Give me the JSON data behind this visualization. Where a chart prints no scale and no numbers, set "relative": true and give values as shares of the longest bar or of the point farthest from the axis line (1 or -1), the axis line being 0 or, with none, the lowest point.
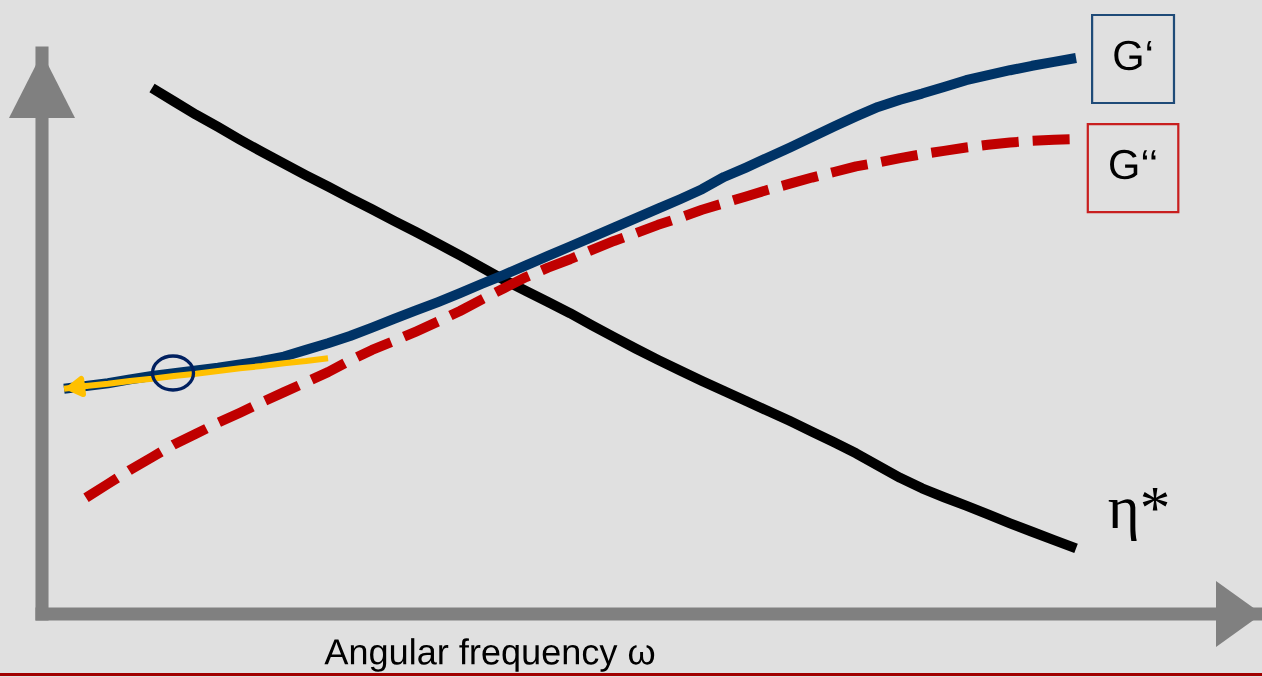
{
  "chart_data": {
    "type": "line",
    "relative": true,
    "tick_labels": false,
    "xlabel": "Angular frequency ω",
    "categories": [
      null,
      null,
      null,
      null,
      null,
      null,
      null,
      null,
      null,
      null,
      null,
      null,
      null,
      null,
      null,
      null,
      null,
      null,
      null,
      null,
      null,
      null,
      null,
      null,
      null,
      null,
      null,
      null,
      null,
      null,
      null,
      null,
      null,
      null,
      null,
      null,
      null,
      null,
      null,
      null,
      null,
      null,
      null,
      null,
      null,
      null,
      null
    ],
    "series": [
      {
        "name": "η*",
        "color": "#000000",
        "values": [
          null,
          null,
          null,
          null,
          0.946,
          0.922,
          0.898,
          0.876,
          0.853,
          0.831,
          0.81,
          0.789,
          0.769,
          0.748,
          0.728,
          0.707,
          0.687,
          0.666,
          0.645,
          0.623,
          0.601,
          0.581,
          0.561,
          0.541,
          0.519,
          0.498,
          0.477,
          0.457,
          0.438,
          0.419,
          0.401,
          0.383,
          0.365,
          0.347,
          0.328,
          0.309,
          0.289,
          0.267,
          0.245,
          0.226,
          0.21,
          0.195,
          0.179,
          0.163,
          0.148,
          0.133,
          0.118
        ]
      },
      {
        "name": "G‘‘",
        "color": "#c00000",
        "line_style": "dashed",
        "values": [
          null,
          0.209,
          0.234,
          0.259,
          0.282,
          0.305,
          0.324,
          0.344,
          0.362,
          0.381,
          0.399,
          0.417,
          0.435,
          0.456,
          0.475,
          0.491,
          0.508,
          0.526,
          0.545,
          0.566,
          0.586,
          0.606,
          0.623,
          0.638,
          0.655,
          0.671,
          0.685,
          0.7,
          0.713,
          0.727,
          0.739,
          0.751,
          0.763,
          0.774,
          0.785,
          0.795,
          0.805,
          0.812,
          0.82,
          0.827,
          0.833,
          0.839,
          0.844,
          0.848,
          0.851,
          0.853,
          0.854
        ]
      },
      {
        "name": "G‘",
        "color": "#003366",
        "values": [
          0.405,
          0.41,
          0.415,
          0.422,
          0.428,
          0.433,
          0.438,
          0.443,
          0.449,
          0.455,
          0.463,
          0.475,
          0.487,
          0.5,
          0.515,
          0.531,
          0.546,
          0.561,
          0.577,
          0.594,
          0.61,
          0.627,
          0.644,
          0.661,
          0.678,
          0.695,
          0.712,
          0.729,
          0.746,
          0.764,
          0.786,
          0.803,
          0.821,
          0.839,
          0.858,
          0.877,
          0.895,
          0.912,
          0.925,
          0.936,
          0.948,
          0.96,
          0.969,
          0.978,
          0.986,
          0.993,
          1.0
        ]
      },
      {
        "color": "#ffc000",
        "values": [
          0.405,
          0.41,
          0.414,
          0.419,
          0.423,
          0.428,
          0.432,
          0.437,
          0.442,
          0.446,
          0.451,
          0.455,
          0.46,
          null,
          null,
          null,
          null,
          null,
          null,
          null,
          null,
          null,
          null,
          null,
          null,
          null,
          null,
          null,
          null,
          null,
          null,
          null,
          null,
          null,
          null,
          null,
          null,
          null,
          null,
          null,
          null,
          null,
          null,
          null,
          null,
          null,
          null
        ]
      }
    ]
  }
}
